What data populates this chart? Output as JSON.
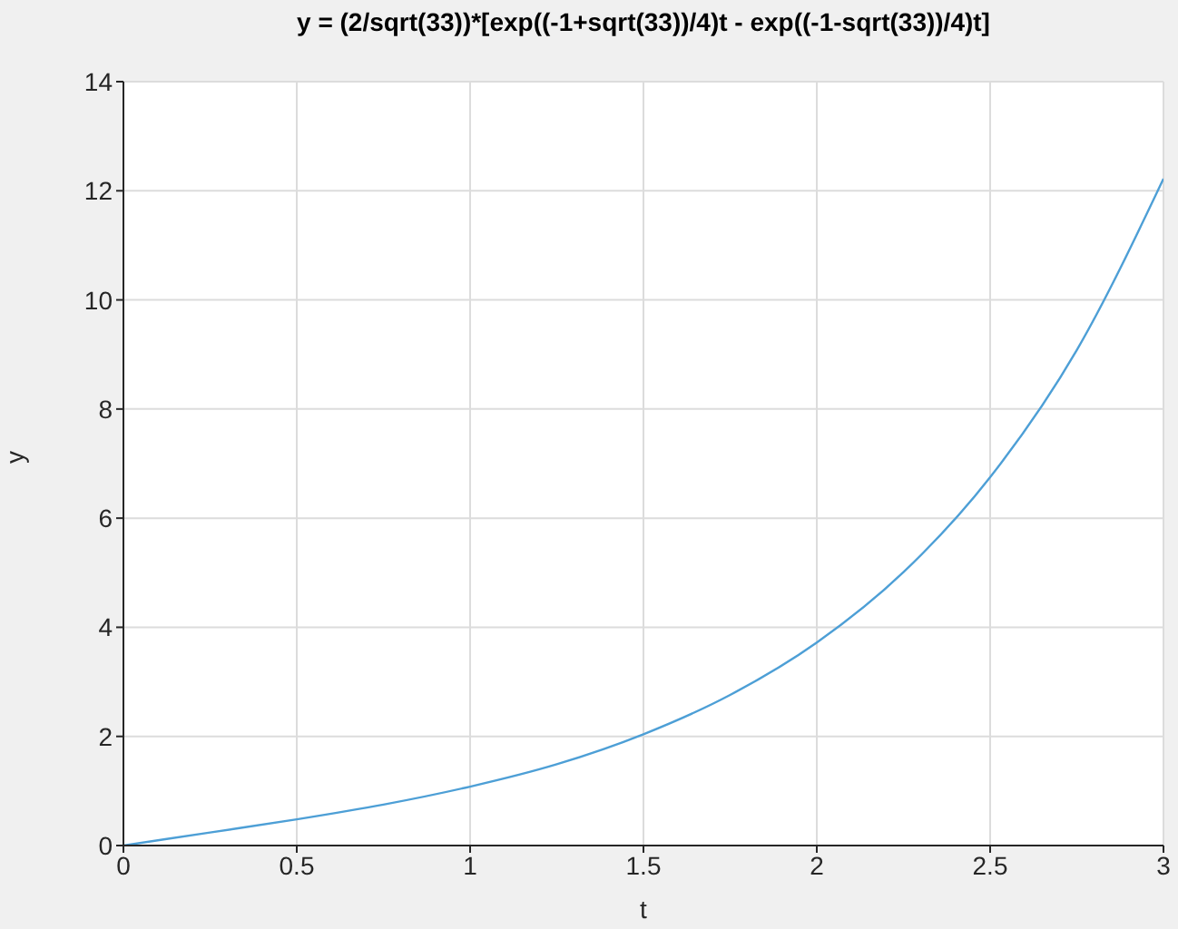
{
  "chart_data": {
    "type": "line",
    "title": "y = (2/sqrt(33))*[exp((-1+sqrt(33))/4)t - exp((-1-sqrt(33))/4)t]",
    "xlabel": "t",
    "ylabel": "y",
    "x": [
      0,
      0.25,
      0.5,
      0.75,
      1,
      1.25,
      1.5,
      1.75,
      2,
      2.25,
      2.5,
      2.75,
      3
    ],
    "series": [
      {
        "color": "#4d9fd6",
        "values": [
          0,
          0.24,
          0.48,
          0.75,
          1.08,
          1.49,
          2.04,
          2.76,
          3.72,
          5.01,
          6.75,
          9.08,
          12.22
        ]
      }
    ],
    "xlim": [
      0,
      3
    ],
    "xticks": [
      0,
      0.5,
      1,
      1.5,
      2,
      2.5,
      3
    ],
    "ylim": [
      0,
      14
    ],
    "yticks": [
      0,
      2,
      4,
      6,
      8,
      10,
      12,
      14
    ],
    "grid": true,
    "legend": false,
    "marker": "none",
    "line_style": "solid"
  }
}
